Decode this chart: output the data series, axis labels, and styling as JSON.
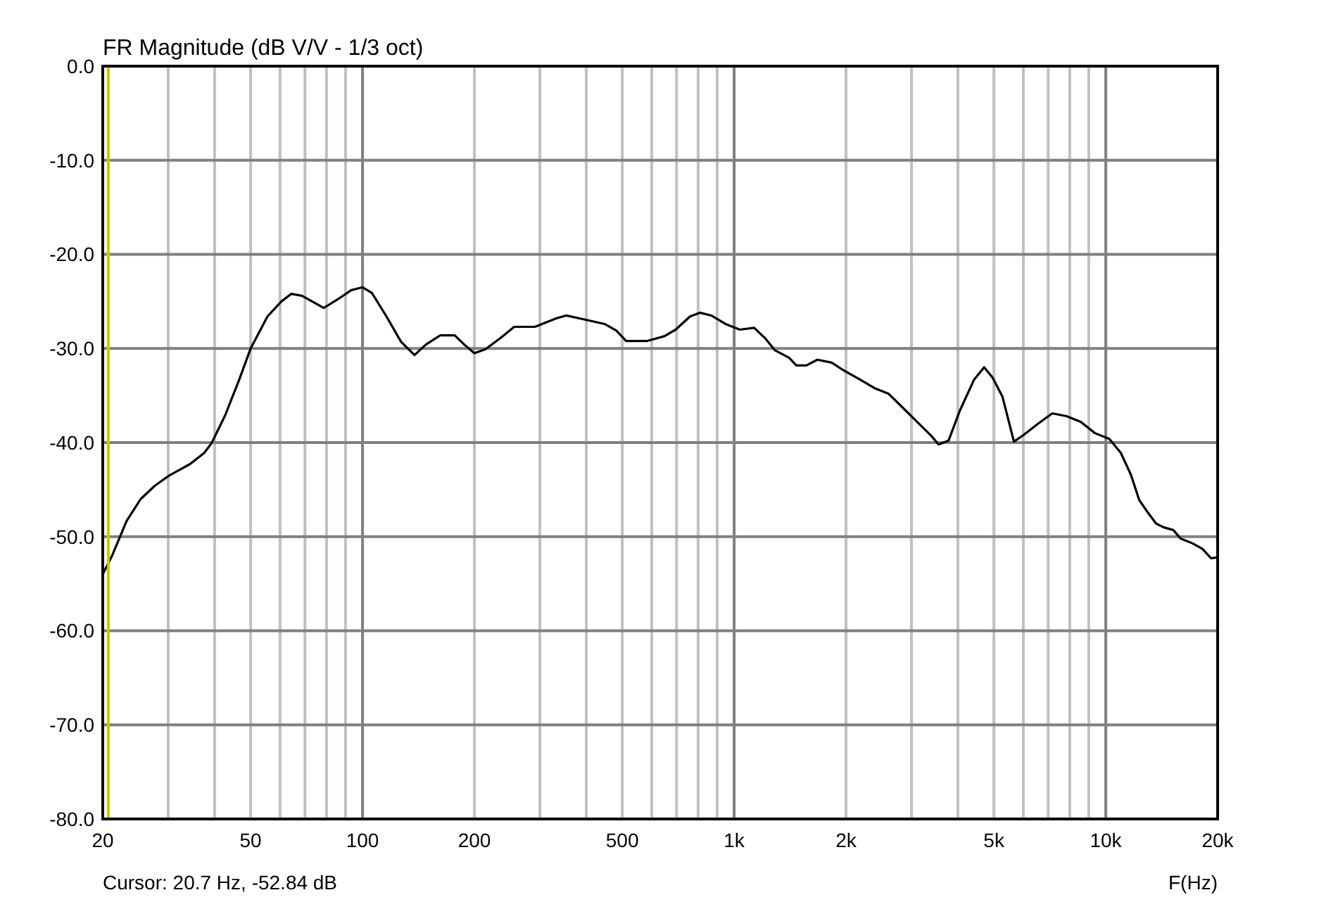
{
  "chart_data": {
    "type": "line",
    "title": "FR Magnitude (dB V/V - 1/3 oct)",
    "xlabel": "F(Hz)",
    "annotations": [
      "Cursor: 20.7 Hz, -52.84 dB"
    ],
    "log": "x",
    "grid": true,
    "marker": "none",
    "line_style": "solid",
    "xlim": [
      20,
      20000
    ],
    "ylim": [
      -80,
      0
    ],
    "xticks": [
      20,
      {
        "value": 30,
        "label": null
      },
      {
        "value": 40,
        "label": null
      },
      50,
      {
        "value": 60,
        "label": null
      },
      {
        "value": 70,
        "label": null
      },
      {
        "value": 80,
        "label": null
      },
      {
        "value": 90,
        "label": null
      },
      100,
      200,
      {
        "value": 300,
        "label": null
      },
      {
        "value": 400,
        "label": null
      },
      500,
      {
        "value": 600,
        "label": null
      },
      {
        "value": 700,
        "label": null
      },
      {
        "value": 800,
        "label": null
      },
      {
        "value": 900,
        "label": null
      },
      {
        "value": 1000,
        "label": "1k"
      },
      {
        "value": 2000,
        "label": "2k"
      },
      {
        "value": 3000,
        "label": null
      },
      {
        "value": 4000,
        "label": null
      },
      {
        "value": 5000,
        "label": "5k"
      },
      {
        "value": 6000,
        "label": null
      },
      {
        "value": 7000,
        "label": null
      },
      {
        "value": 8000,
        "label": null
      },
      {
        "value": 9000,
        "label": null
      },
      {
        "value": 10000,
        "label": "10k"
      },
      {
        "value": 20000,
        "label": "20k"
      }
    ],
    "yticks": [
      {
        "value": 0,
        "label": "0.0"
      },
      {
        "value": -10,
        "label": "-10.0"
      },
      {
        "value": -20,
        "label": "-20.0"
      },
      {
        "value": -30,
        "label": "-30.0"
      },
      {
        "value": -40,
        "label": "-40.0"
      },
      {
        "value": -50,
        "label": "-50.0"
      },
      {
        "value": -60,
        "label": "-60.0"
      },
      {
        "value": -70,
        "label": "-70.0"
      },
      {
        "value": -80,
        "label": "-80.0"
      }
    ],
    "ref_lines": [
      {
        "axis": "x",
        "value": 20.7,
        "color": "#c8c800"
      }
    ],
    "series": [
      {
        "color": "#000000",
        "x": [
          20,
          21.2,
          23.2,
          25.3,
          27.6,
          30.2,
          34.3,
          37.5,
          39.2,
          42.7,
          46.6,
          50,
          55.5,
          60.5,
          64.3,
          68.7,
          75.5,
          78.6,
          85.6,
          93.3,
          100,
          106,
          116,
          127,
          138,
          148,
          162,
          177,
          188,
          200,
          214,
          235,
          256,
          291,
          332,
          353,
          393,
          448,
          482,
          512,
          584,
          649,
          696,
          761,
          809,
          868,
          948,
          1036,
          1132,
          1211,
          1288,
          1407,
          1470,
          1564,
          1675,
          1830,
          1965,
          2180,
          2382,
          2600,
          2844,
          3107,
          3395,
          3548,
          3774,
          4050,
          4424,
          4707,
          4960,
          5270,
          5660,
          6010,
          6570,
          7180,
          7840,
          8560,
          9350,
          10220,
          10980,
          11680,
          12300,
          12960,
          13650,
          14300,
          15200,
          15900,
          17100,
          18200,
          19200,
          20000
        ],
        "values": [
          -54.0,
          -52,
          -48.3,
          -46,
          -44.6,
          -43.5,
          -42.3,
          -41.1,
          -40.1,
          -37.1,
          -33.3,
          -30,
          -26.6,
          -25,
          -24.2,
          -24.4,
          -25.3,
          -25.7,
          -24.8,
          -23.8,
          -23.5,
          -24.1,
          -26.6,
          -29.3,
          -30.7,
          -29.6,
          -28.6,
          -28.6,
          -29.6,
          -30.5,
          -30.1,
          -28.9,
          -27.7,
          -27.7,
          -26.8,
          -26.5,
          -26.9,
          -27.4,
          -28.1,
          -29.2,
          -29.2,
          -28.7,
          -28.0,
          -26.6,
          -26.2,
          -26.5,
          -27.4,
          -28.0,
          -27.8,
          -28.9,
          -30.2,
          -31.0,
          -31.8,
          -31.8,
          -31.2,
          -31.5,
          -32.3,
          -33.3,
          -34.2,
          -34.8,
          -36.3,
          -37.8,
          -39.3,
          -40.2,
          -39.8,
          -36.6,
          -33.3,
          -32.0,
          -33.1,
          -35.1,
          -39.9,
          -39.2,
          -38.0,
          -36.9,
          -37.2,
          -37.8,
          -39.0,
          -39.6,
          -41.1,
          -43.4,
          -46.1,
          -47.4,
          -48.6,
          -49.0,
          -49.3,
          -50.2,
          -50.7,
          -51.3,
          -52.3,
          -52.2
        ]
      }
    ]
  }
}
